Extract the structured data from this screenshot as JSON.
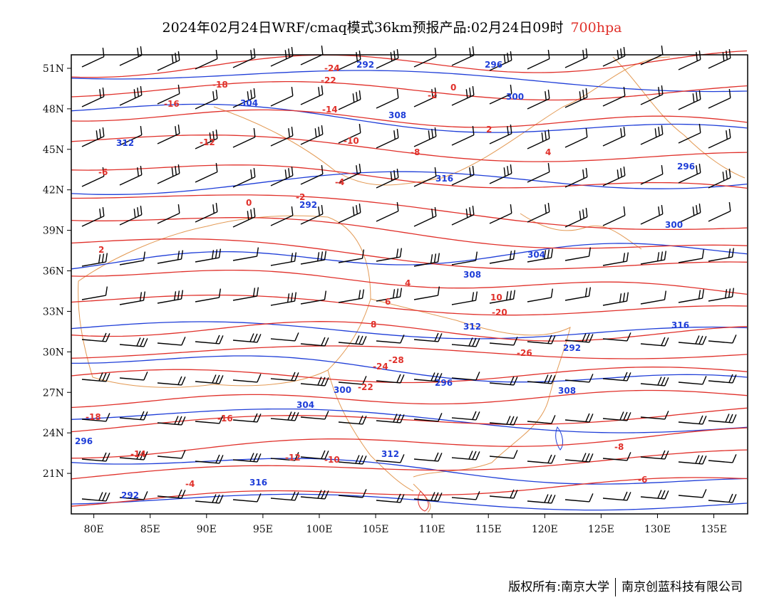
{
  "title": {
    "main": "2024年02月24日WRF/cmaq模式36km预报产品:02月24日09时",
    "level": "700hpa"
  },
  "map": {
    "lon_range": [
      78,
      138
    ],
    "lat_range": [
      18,
      52
    ],
    "lon_ticks": [
      "80E",
      "85E",
      "90E",
      "95E",
      "100E",
      "105E",
      "110E",
      "115E",
      "120E",
      "125E",
      "130E",
      "135E"
    ],
    "lat_ticks": [
      "51N",
      "48N",
      "45N",
      "42N",
      "39N",
      "36N",
      "33N",
      "30N",
      "27N",
      "24N",
      "21N"
    ],
    "colors": {
      "temperature_contours": "#e0302a",
      "height_contours": "#1f3ed8",
      "boundaries": "#e39a55",
      "wind_barbs": "#000000"
    },
    "temperature_labels": [
      "-24",
      "-22",
      "-18",
      "-16",
      "-14",
      "-12",
      "-10",
      "-8",
      "-6",
      "-4",
      "-2",
      "0",
      "2",
      "4",
      "6",
      "8",
      "10",
      "-20",
      "-26",
      "-28"
    ],
    "height_labels": [
      "292",
      "296",
      "300",
      "304",
      "308",
      "312",
      "316"
    ]
  },
  "footer": {
    "left": "版权所有:南京大学",
    "right": "南京创蓝科技有限公司"
  }
}
